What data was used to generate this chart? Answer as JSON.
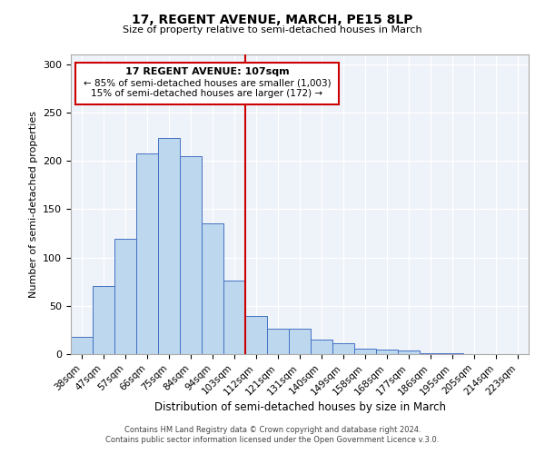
{
  "title": "17, REGENT AVENUE, MARCH, PE15 8LP",
  "subtitle": "Size of property relative to semi-detached houses in March",
  "xlabel": "Distribution of semi-detached houses by size in March",
  "ylabel": "Number of semi-detached properties",
  "bar_labels": [
    "38sqm",
    "47sqm",
    "57sqm",
    "66sqm",
    "75sqm",
    "84sqm",
    "94sqm",
    "103sqm",
    "112sqm",
    "121sqm",
    "131sqm",
    "140sqm",
    "149sqm",
    "158sqm",
    "168sqm",
    "177sqm",
    "186sqm",
    "195sqm",
    "205sqm",
    "214sqm",
    "223sqm"
  ],
  "bar_values": [
    18,
    70,
    119,
    208,
    224,
    205,
    135,
    76,
    39,
    26,
    26,
    15,
    11,
    6,
    5,
    4,
    1,
    1,
    0,
    0,
    0
  ],
  "bar_color": "#bdd7ee",
  "bar_edge_color": "#4472c4",
  "vline_x": 7.5,
  "vline_color": "#cc0000",
  "annotation_title": "17 REGENT AVENUE: 107sqm",
  "annotation_line1": "← 85% of semi-detached houses are smaller (1,003)",
  "annotation_line2": "15% of semi-detached houses are larger (172) →",
  "annotation_box_color": "#cc0000",
  "ylim": [
    0,
    310
  ],
  "yticks": [
    0,
    50,
    100,
    150,
    200,
    250,
    300
  ],
  "bg_color": "#eef2f9",
  "fig_color": "#ffffff",
  "footer1": "Contains HM Land Registry data © Crown copyright and database right 2024.",
  "footer2": "Contains public sector information licensed under the Open Government Licence v.3.0."
}
